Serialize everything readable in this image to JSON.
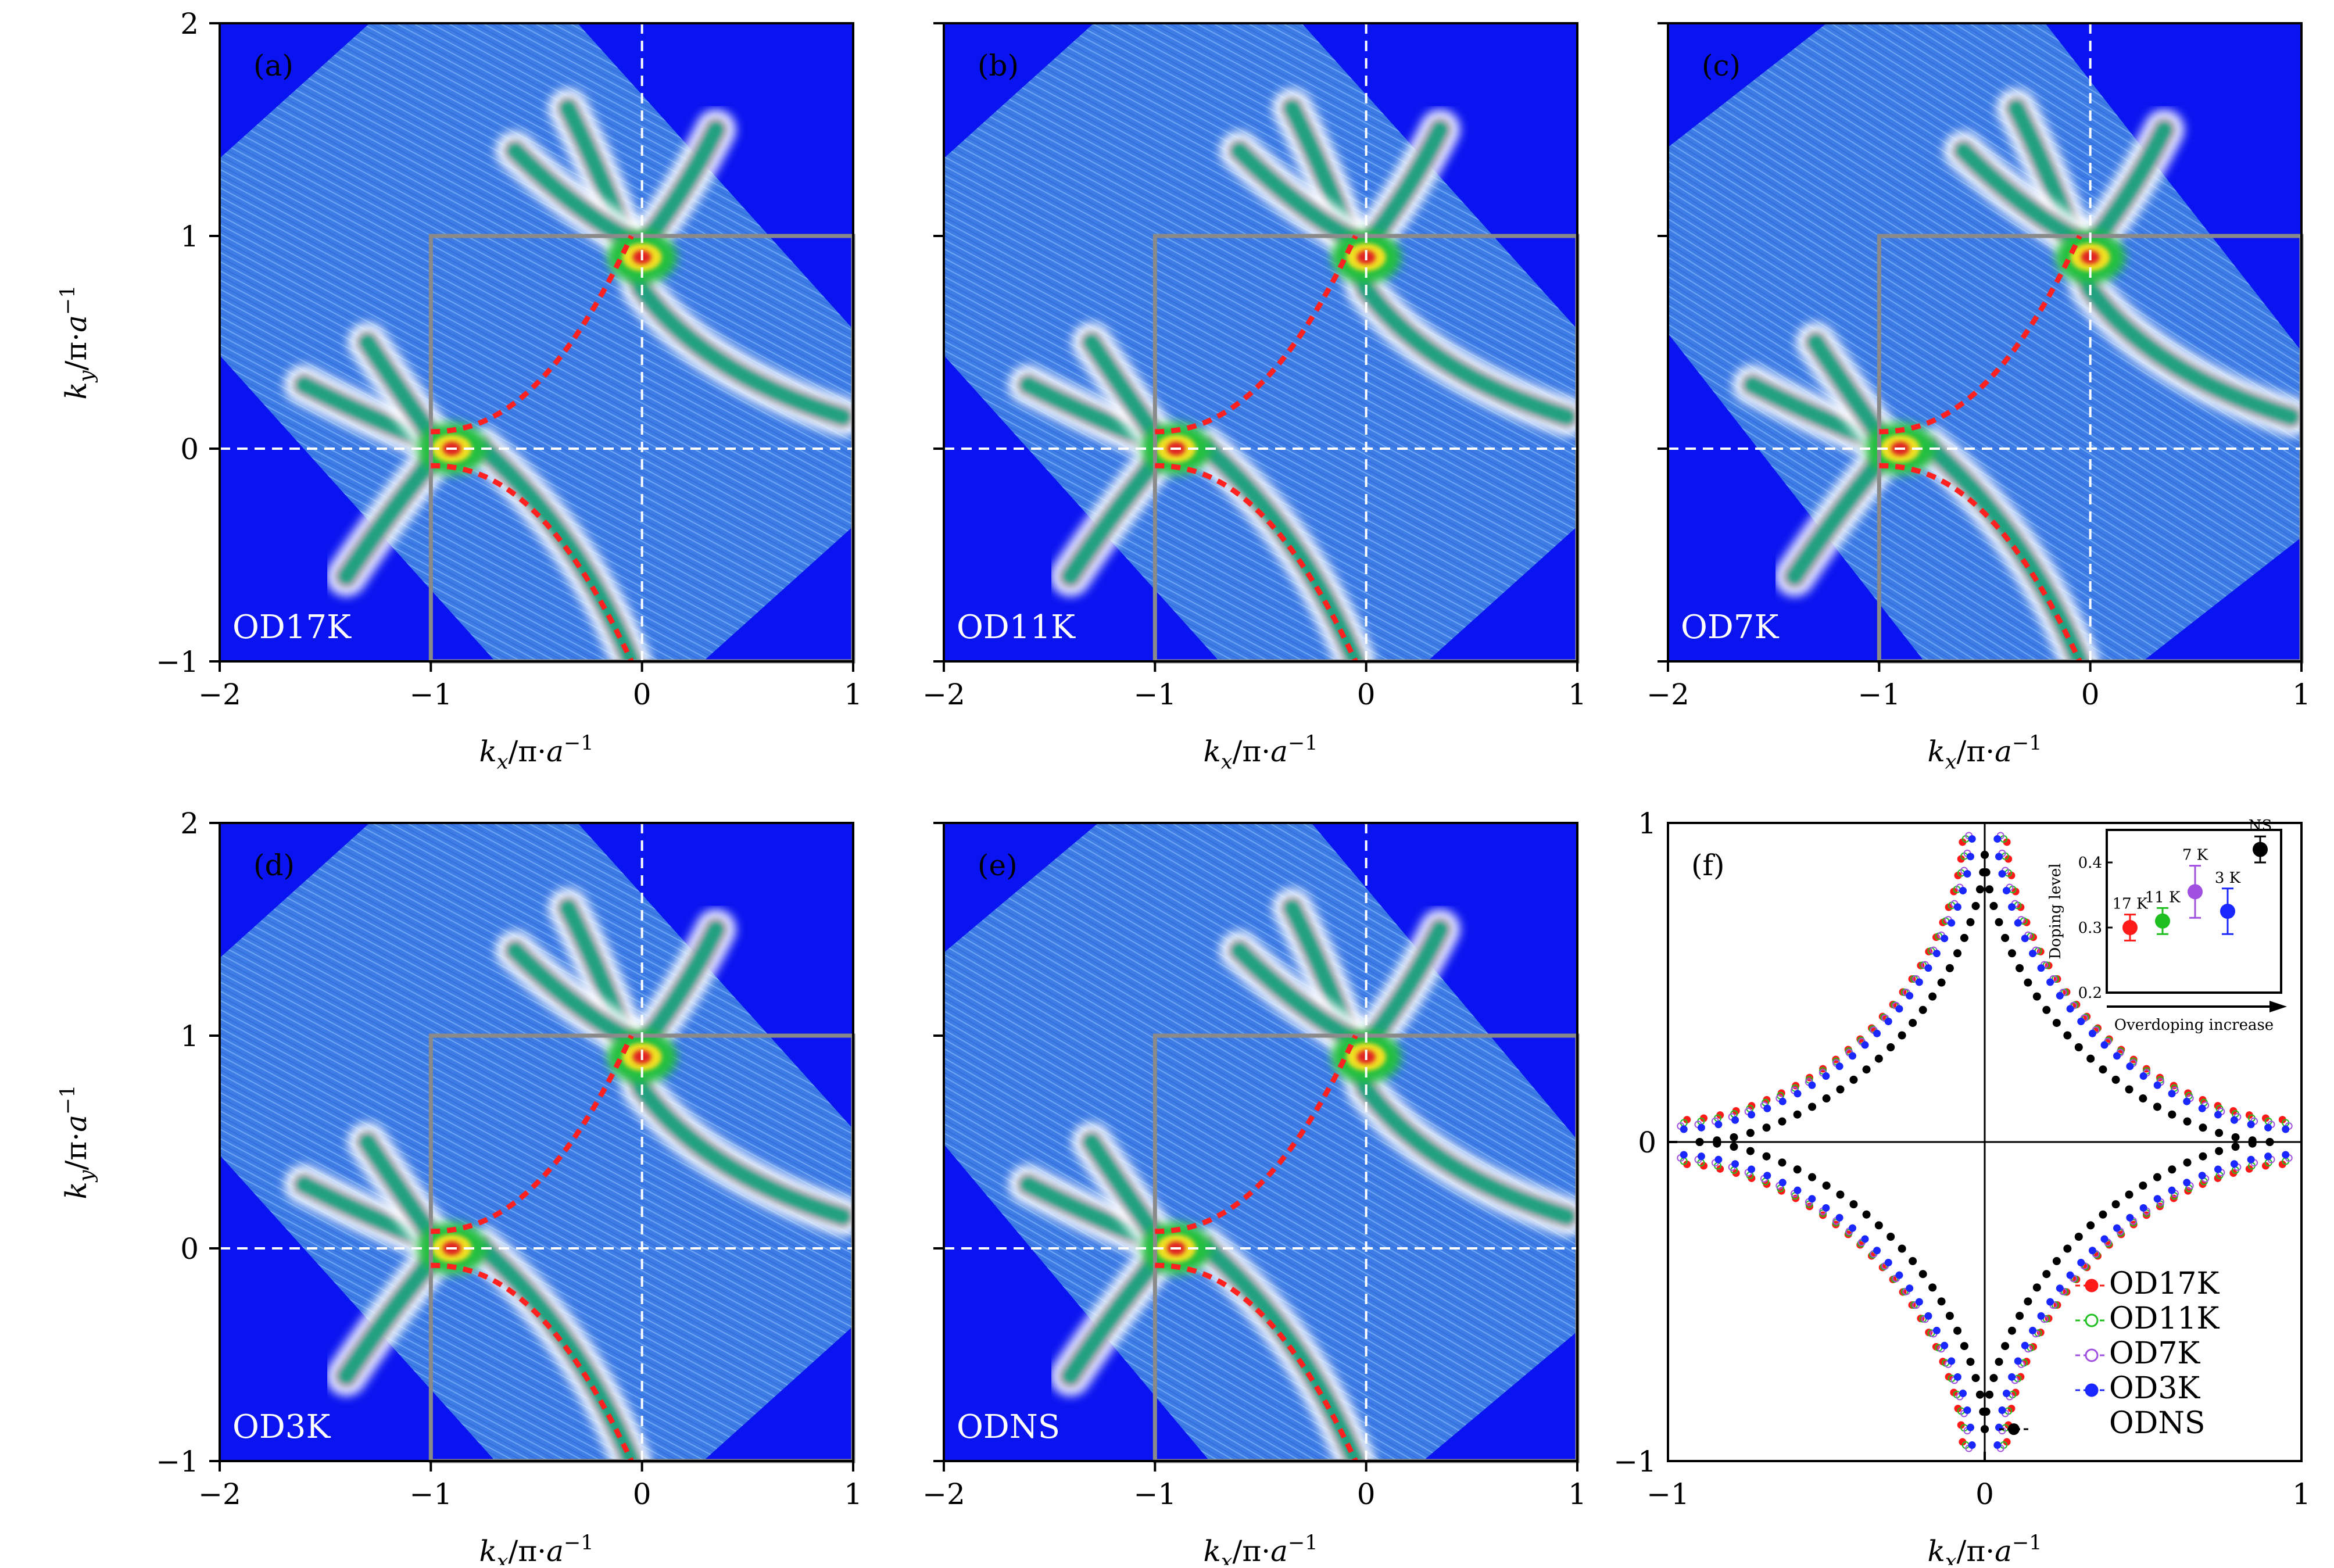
{
  "colors": {
    "map_background": "#0a14f0",
    "map_pixels": "#3f7fe8",
    "grid_box": "#8a8a8a",
    "fit_curve": "#ff2020",
    "dashed_axis": "#ffffff",
    "od17k": "#ff1a1a",
    "od11k": "#1fbf1f",
    "od7k": "#a050e0",
    "od3k": "#1a28ff",
    "odns": "#000000"
  },
  "panels": [
    {
      "letter": "(a)",
      "label": "OD17K"
    },
    {
      "letter": "(b)",
      "label": "OD11K"
    },
    {
      "letter": "(c)",
      "label": "OD7K"
    },
    {
      "letter": "(d)",
      "label": "OD3K"
    },
    {
      "letter": "(e)",
      "label": "ODNS"
    }
  ],
  "map_axes": {
    "x_ticks": [
      "−2",
      "−1",
      "0",
      "1"
    ],
    "y_ticks": [
      "2",
      "1",
      "0",
      "−1"
    ],
    "xlabel": "kx/π·a−1",
    "ylabel": "ky/π·a−1"
  },
  "chart_data": {
    "type": "scatter",
    "panel_letter": "(f)",
    "xlabel": "kx/π·a−1",
    "ylabel": "ky/π·a−1",
    "xlim": [
      -1,
      1
    ],
    "ylim": [
      -1,
      1
    ],
    "x_ticks": [
      "−1",
      "0",
      "1"
    ],
    "y_ticks": [
      "1",
      "0",
      "−1"
    ],
    "legend_position": "bottom-right",
    "series": [
      {
        "name": "OD17K",
        "gap_at_axis": 0.07,
        "x_edge": 0.94
      },
      {
        "name": "OD11K",
        "gap_at_axis": 0.06,
        "x_edge": 0.95
      },
      {
        "name": "OD7K",
        "gap_at_axis": 0.05,
        "x_edge": 0.96
      },
      {
        "name": "OD3K",
        "gap_at_axis": 0.04,
        "x_edge": 0.95
      },
      {
        "name": "ODNS",
        "gap_at_axis": 0.0,
        "x_edge": 0.9
      }
    ],
    "inset": {
      "type": "scatter",
      "ylabel": "Doping level",
      "xlabel": "Overdoping increase",
      "ylim": [
        0.2,
        0.45
      ],
      "y_ticks": [
        "0.2",
        "0.3",
        "0.4"
      ],
      "points": [
        {
          "label": "17 K",
          "value": 0.3,
          "error": 0.02
        },
        {
          "label": "11 K",
          "value": 0.31,
          "error": 0.02
        },
        {
          "label": "7 K",
          "value": 0.355,
          "error": 0.04
        },
        {
          "label": "3 K",
          "value": 0.325,
          "error": 0.035
        },
        {
          "label": "NS",
          "value": 0.42,
          "error": 0.02
        }
      ]
    }
  }
}
